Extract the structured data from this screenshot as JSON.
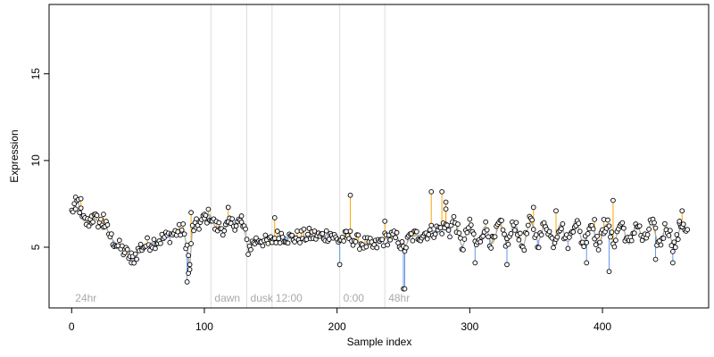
{
  "chart_data": {
    "type": "scatter",
    "xlabel": "Sample index",
    "ylabel": "Expression",
    "xlim": [
      -17,
      480
    ],
    "ylim": [
      1.5,
      19
    ],
    "x_ticks": [
      0,
      100,
      200,
      300,
      400
    ],
    "y_ticks": [
      5,
      10,
      15
    ],
    "grid": false,
    "baseline_center": 5.95,
    "colors": {
      "above_line": "#FFA500",
      "below_line": "#6495ED",
      "point_fill": "#ffffff",
      "point_stroke": "#000000",
      "smooth_line": "#a9a9a9",
      "phase_line": "#dddddd",
      "phase_label": "#a9a9a9"
    },
    "phase_markers": [
      {
        "x": 0,
        "label": "24hr",
        "line": false
      },
      {
        "x": 105,
        "label": "dawn",
        "line": true
      },
      {
        "x": 132,
        "label": "dusk",
        "line": true
      },
      {
        "x": 151,
        "label": "12:00",
        "line": true
      },
      {
        "x": 202,
        "label": "0:00",
        "line": true
      },
      {
        "x": 236,
        "label": "48hr",
        "line": true
      }
    ],
    "sample_count": 465,
    "anchors": [
      [
        0,
        7.0
      ],
      [
        2,
        7.4
      ],
      [
        5,
        7.6
      ],
      [
        8,
        6.6
      ],
      [
        12,
        6.4
      ],
      [
        16,
        6.7
      ],
      [
        20,
        6.5
      ],
      [
        25,
        6.3
      ],
      [
        30,
        5.5
      ],
      [
        36,
        5.0
      ],
      [
        42,
        4.6
      ],
      [
        46,
        4.3
      ],
      [
        52,
        5.0
      ],
      [
        58,
        5.2
      ],
      [
        65,
        5.4
      ],
      [
        72,
        5.6
      ],
      [
        80,
        5.9
      ],
      [
        84,
        6.0
      ],
      [
        87,
        5.0
      ],
      [
        89,
        3.8
      ],
      [
        91,
        6.1
      ],
      [
        96,
        6.3
      ],
      [
        100,
        6.6
      ],
      [
        104,
        6.9
      ],
      [
        108,
        6.2
      ],
      [
        115,
        6.1
      ],
      [
        120,
        6.3
      ],
      [
        126,
        6.5
      ],
      [
        130,
        6.1
      ],
      [
        133,
        4.9
      ],
      [
        137,
        5.3
      ],
      [
        142,
        5.5
      ],
      [
        148,
        5.2
      ],
      [
        152,
        5.5
      ],
      [
        158,
        5.7
      ],
      [
        165,
        5.5
      ],
      [
        172,
        5.6
      ],
      [
        180,
        5.7
      ],
      [
        188,
        5.6
      ],
      [
        195,
        5.8
      ],
      [
        200,
        5.4
      ],
      [
        204,
        5.5
      ],
      [
        210,
        5.6
      ],
      [
        216,
        5.3
      ],
      [
        222,
        5.2
      ],
      [
        228,
        5.0
      ],
      [
        234,
        5.4
      ],
      [
        240,
        5.6
      ],
      [
        246,
        5.5
      ],
      [
        250,
        4.8
      ],
      [
        255,
        5.6
      ],
      [
        262,
        5.7
      ],
      [
        270,
        5.9
      ],
      [
        276,
        6.0
      ],
      [
        282,
        6.2
      ],
      [
        288,
        6.0
      ],
      [
        295,
        5.6
      ],
      [
        302,
        5.7
      ],
      [
        310,
        5.6
      ],
      [
        318,
        5.8
      ],
      [
        325,
        5.7
      ],
      [
        332,
        5.9
      ],
      [
        340,
        5.6
      ],
      [
        348,
        6.0
      ],
      [
        355,
        5.8
      ],
      [
        362,
        5.9
      ],
      [
        370,
        5.7
      ],
      [
        378,
        6.0
      ],
      [
        386,
        5.8
      ],
      [
        394,
        5.8
      ],
      [
        400,
        5.7
      ],
      [
        408,
        5.9
      ],
      [
        415,
        5.8
      ],
      [
        422,
        5.7
      ],
      [
        430,
        5.9
      ],
      [
        438,
        5.8
      ],
      [
        445,
        5.7
      ],
      [
        452,
        5.6
      ],
      [
        458,
        5.7
      ],
      [
        464,
        6.2
      ]
    ],
    "spikes": [
      {
        "x": 3,
        "y": 7.2
      },
      {
        "x": 7,
        "y": 7.8
      },
      {
        "x": 15,
        "y": 6.8
      },
      {
        "x": 24,
        "y": 6.9
      },
      {
        "x": 45,
        "y": 4.1
      },
      {
        "x": 87,
        "y": 3.0
      },
      {
        "x": 88,
        "y": 3.5
      },
      {
        "x": 89,
        "y": 4.0
      },
      {
        "x": 90,
        "y": 7.0
      },
      {
        "x": 100,
        "y": 6.9
      },
      {
        "x": 118,
        "y": 7.3
      },
      {
        "x": 128,
        "y": 6.8
      },
      {
        "x": 153,
        "y": 6.7
      },
      {
        "x": 202,
        "y": 4.0
      },
      {
        "x": 210,
        "y": 8.0
      },
      {
        "x": 236,
        "y": 6.5
      },
      {
        "x": 250,
        "y": 2.6
      },
      {
        "x": 251,
        "y": 2.6
      },
      {
        "x": 271,
        "y": 8.2
      },
      {
        "x": 279,
        "y": 8.2
      },
      {
        "x": 282,
        "y": 7.6
      },
      {
        "x": 282,
        "y": 7.2
      },
      {
        "x": 304,
        "y": 4.1
      },
      {
        "x": 328,
        "y": 4.0
      },
      {
        "x": 348,
        "y": 7.3
      },
      {
        "x": 365,
        "y": 7.1
      },
      {
        "x": 388,
        "y": 4.1
      },
      {
        "x": 394,
        "y": 6.6
      },
      {
        "x": 401,
        "y": 6.6
      },
      {
        "x": 405,
        "y": 3.6
      },
      {
        "x": 408,
        "y": 7.7
      },
      {
        "x": 440,
        "y": 4.3
      },
      {
        "x": 453,
        "y": 4.1
      },
      {
        "x": 458,
        "y": 6.5
      },
      {
        "x": 460,
        "y": 7.1
      }
    ],
    "noise_amplitude": 0.42,
    "oscillation_start": 285,
    "oscillation_amplitude": 0.55
  }
}
